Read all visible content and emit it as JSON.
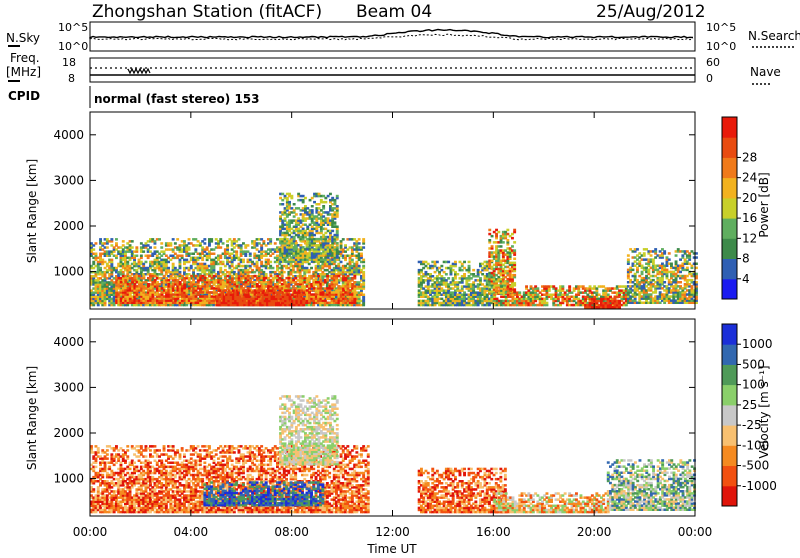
{
  "header": {
    "station": "Zhongshan Station (fitACF)",
    "beam": "Beam 04",
    "date": "25/Aug/2012"
  },
  "top_panels": {
    "nsky_label": "N.Sky",
    "nsky_ticks": [
      "10^5",
      "10^0"
    ],
    "nsearch_label": "N.Search",
    "nsearch_ticks": [
      "10^5",
      "10^0"
    ],
    "freq_label": [
      "Freq.",
      "[MHz]"
    ],
    "freq_ticks": [
      "18",
      "8"
    ],
    "nave_label": "Nave",
    "nave_ticks": [
      "60",
      "0"
    ],
    "cpid_label": "CPID",
    "cpid_text": "normal (fast stereo) 153"
  },
  "colors": {
    "power": [
      "#1b1bf0",
      "#2f5fb3",
      "#3d8a4a",
      "#5fae5f",
      "#c8d02a",
      "#f2b21f",
      "#f07a1a",
      "#e84b10",
      "#e81a0a"
    ],
    "velocity": [
      "#e0140a",
      "#f25010",
      "#f58a20",
      "#f8c070",
      "#c8c8c8",
      "#8acf6a",
      "#4f9a58",
      "#3268b0",
      "#1b2fd8"
    ]
  },
  "chart_data": [
    {
      "type": "heatmap",
      "quantity": "power",
      "ylabel": "Slant Range [km]",
      "xlabel": "",
      "ylim": [
        180,
        4500
      ],
      "yticks": [
        "1000",
        "2000",
        "3000",
        "4000"
      ],
      "xlim": [
        0,
        24
      ],
      "xticks": [],
      "colorbar": {
        "label": "Power [dB]",
        "ticks": [
          "4",
          "8",
          "12",
          "16",
          "20",
          "24",
          "28"
        ],
        "range": [
          0,
          32
        ]
      },
      "regions": [
        {
          "t0": 0.0,
          "t1": 10.8,
          "r0": 250,
          "r1": 1700,
          "level": "low-mixed"
        },
        {
          "t0": 1.0,
          "t1": 10.5,
          "r0": 300,
          "r1": 900,
          "level": "high"
        },
        {
          "t0": 5.0,
          "t1": 8.5,
          "r0": 250,
          "r1": 600,
          "level": "very-high"
        },
        {
          "t0": 7.5,
          "t1": 9.8,
          "r0": 1200,
          "r1": 2700,
          "level": "moderate"
        },
        {
          "t0": 13.0,
          "t1": 16.0,
          "r0": 250,
          "r1": 1200,
          "level": "moderate"
        },
        {
          "t0": 15.8,
          "t1": 16.8,
          "r0": 500,
          "r1": 1900,
          "level": "mixed"
        },
        {
          "t0": 16.0,
          "t1": 21.3,
          "r0": 250,
          "r1": 700,
          "level": "mixed"
        },
        {
          "t0": 19.6,
          "t1": 21.0,
          "r0": 200,
          "r1": 450,
          "level": "very-high"
        },
        {
          "t0": 21.3,
          "t1": 24.0,
          "r0": 300,
          "r1": 1500,
          "level": "low-mixed"
        }
      ]
    },
    {
      "type": "heatmap",
      "quantity": "velocity",
      "ylabel": "Slant Range [km]",
      "xlabel": "Time UT",
      "ylim": [
        180,
        4500
      ],
      "yticks": [
        "1000",
        "2000",
        "3000",
        "4000"
      ],
      "xlim": [
        0,
        24
      ],
      "xticks": [
        "00:00",
        "04:00",
        "08:00",
        "12:00",
        "16:00",
        "20:00",
        "00:00"
      ],
      "colorbar": {
        "label": "Velocity [m s⁻¹]",
        "ticks": [
          "1000",
          "500",
          "100",
          "25",
          "-25",
          "-100",
          "-500",
          "-1000"
        ]
      },
      "regions": [
        {
          "t0": 0.0,
          "t1": 11.0,
          "r0": 250,
          "r1": 1700,
          "level": "negative"
        },
        {
          "t0": 4.5,
          "t1": 9.2,
          "r0": 400,
          "r1": 900,
          "level": "positive-strong"
        },
        {
          "t0": 7.5,
          "t1": 9.8,
          "r0": 1300,
          "r1": 2800,
          "level": "near-zero"
        },
        {
          "t0": 13.0,
          "t1": 16.5,
          "r0": 250,
          "r1": 1200,
          "level": "negative"
        },
        {
          "t0": 16.0,
          "t1": 20.5,
          "r0": 250,
          "r1": 700,
          "level": "negative-mixed"
        },
        {
          "t0": 20.5,
          "t1": 24.0,
          "r0": 300,
          "r1": 1400,
          "level": "positive-mixed"
        }
      ]
    }
  ]
}
